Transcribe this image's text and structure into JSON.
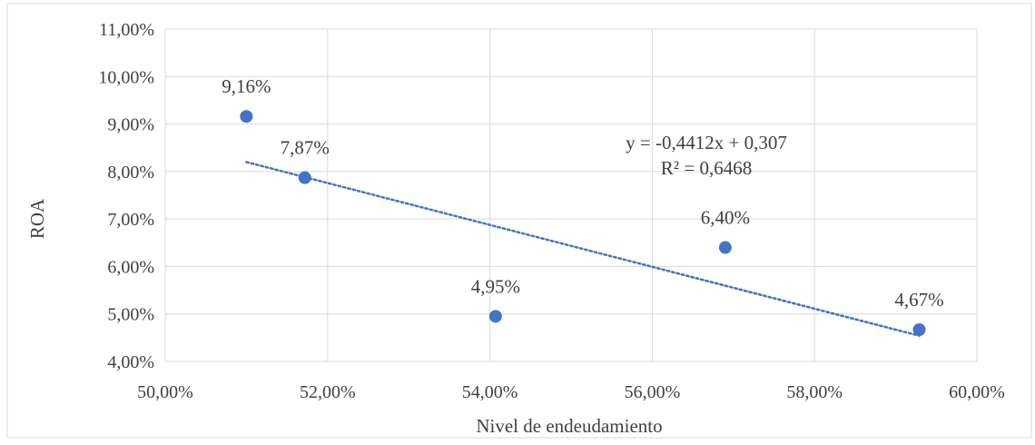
{
  "chart_data": {
    "type": "scatter",
    "title": "",
    "xlabel": "Nivel de endeudamiento",
    "ylabel": "ROA",
    "xlim": [
      0.5,
      0.6
    ],
    "ylim": [
      0.04,
      0.11
    ],
    "x_ticks": [
      {
        "value": 0.5,
        "label": "50,00%"
      },
      {
        "value": 0.52,
        "label": "52,00%"
      },
      {
        "value": 0.54,
        "label": "54,00%"
      },
      {
        "value": 0.56,
        "label": "56,00%"
      },
      {
        "value": 0.58,
        "label": "58,00%"
      },
      {
        "value": 0.6,
        "label": "60,00%"
      }
    ],
    "y_ticks": [
      {
        "value": 0.04,
        "label": "4,00%"
      },
      {
        "value": 0.05,
        "label": "5,00%"
      },
      {
        "value": 0.06,
        "label": "6,00%"
      },
      {
        "value": 0.07,
        "label": "7,00%"
      },
      {
        "value": 0.08,
        "label": "8,00%"
      },
      {
        "value": 0.09,
        "label": "9,00%"
      },
      {
        "value": 0.1,
        "label": "10,00%"
      },
      {
        "value": 0.11,
        "label": "11,00%"
      }
    ],
    "grid": true,
    "legend": "none",
    "point_color": "#4472C4",
    "trend_color": "#4472C4",
    "gridline_color": "#D9D9D9",
    "points": [
      {
        "x": 0.51,
        "y": 0.0916,
        "label": "9,16%"
      },
      {
        "x": 0.5172,
        "y": 0.0787,
        "label": "7,87%"
      },
      {
        "x": 0.5407,
        "y": 0.0495,
        "label": "4,95%"
      },
      {
        "x": 0.569,
        "y": 0.064,
        "label": "6,40%"
      },
      {
        "x": 0.5929,
        "y": 0.0467,
        "label": "4,67%"
      }
    ],
    "trendline": {
      "type": "linear",
      "slope": -0.4412,
      "intercept": 0.307,
      "x_range": [
        0.51,
        0.5929
      ],
      "equation": "y = -0,4412x + 0,307",
      "r_squared": "R² = 0,6468"
    }
  }
}
